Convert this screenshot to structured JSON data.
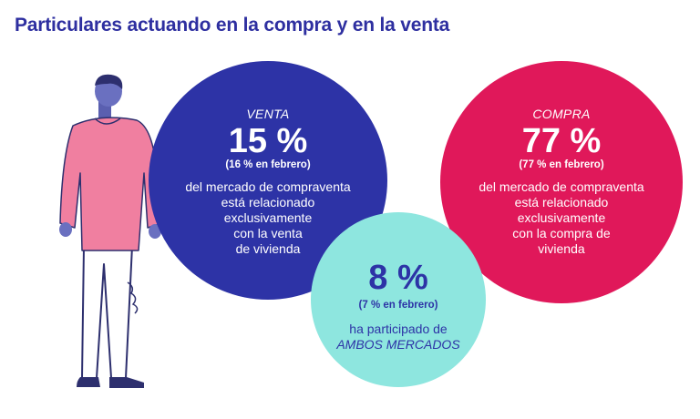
{
  "title": "Particulares actuando en la compra y en la venta",
  "venta": {
    "label": "VENTA",
    "value": "15 %",
    "previous": "(16 % en febrero)",
    "lines": [
      "del mercado de compraventa",
      "está relacionado",
      "exclusivamente",
      "con la venta",
      "de vivienda"
    ]
  },
  "compra": {
    "label": "COMPRA",
    "value": "77 %",
    "previous": "(77 % en febrero)",
    "lines": [
      "del mercado de compraventa",
      "está relacionado",
      "exclusivamente",
      "con la compra de",
      "vivienda"
    ]
  },
  "ambos": {
    "value": "8 %",
    "previous": "(7 % en febrero)",
    "line1": "ha participado de",
    "line2": "AMBOS MERCADOS"
  },
  "colors": {
    "title": "#2e2fa0",
    "venta": "#2d33a6",
    "compra": "#e0185a",
    "ambos": "#8ee6df",
    "sweater": "#f07fa0"
  },
  "illustration": "person-icon"
}
